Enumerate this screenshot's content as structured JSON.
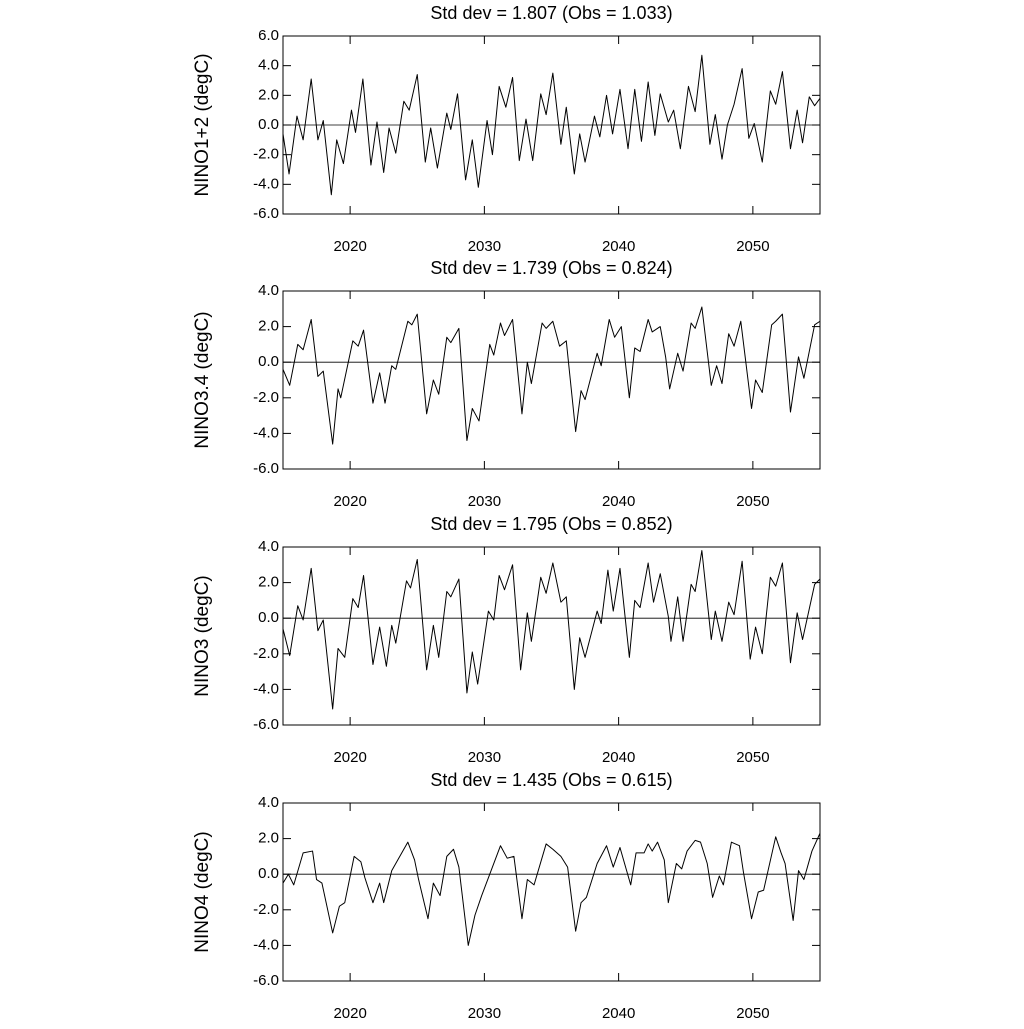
{
  "chart_data": [
    {
      "type": "line",
      "title": "Std dev = 1.807 (Obs = 1.033)",
      "ylabel": "NINO1+2 (degC)",
      "color": "#000000",
      "reference_line": 0,
      "xlim": [
        2015,
        2055
      ],
      "xticks": [
        2020,
        2030,
        2040,
        2050
      ],
      "ylim": [
        -6,
        6
      ],
      "yticks": [
        {
          "value": -6,
          "label": "-6.0"
        },
        {
          "value": -4,
          "label": "-4.0"
        },
        {
          "value": -2,
          "label": "-2.0"
        },
        {
          "value": 0,
          "label": "0.0"
        },
        {
          "value": 2,
          "label": "2.0"
        },
        {
          "value": 4,
          "label": "4.0"
        },
        {
          "value": 6,
          "label": "6.0"
        }
      ],
      "x": [
        2015.0,
        2015.45,
        2016.04,
        2016.5,
        2017.1,
        2017.6,
        2018.0,
        2018.6,
        2019.0,
        2019.5,
        2020.1,
        2020.4,
        2020.95,
        2021.55,
        2022.0,
        2022.5,
        2022.9,
        2023.4,
        2024.0,
        2024.4,
        2025.0,
        2025.6,
        2026.0,
        2026.5,
        2027.2,
        2027.5,
        2028.0,
        2028.6,
        2029.1,
        2029.55,
        2030.2,
        2030.6,
        2031.1,
        2031.6,
        2032.1,
        2032.6,
        2033.1,
        2033.6,
        2034.2,
        2034.6,
        2035.1,
        2035.7,
        2036.1,
        2036.7,
        2037.1,
        2037.5,
        2038.2,
        2038.6,
        2039.1,
        2039.55,
        2040.1,
        2040.7,
        2041.2,
        2041.7,
        2042.2,
        2042.7,
        2043.1,
        2043.7,
        2044.1,
        2044.6,
        2045.2,
        2045.7,
        2046.2,
        2046.8,
        2047.2,
        2047.7,
        2048.1,
        2048.6,
        2049.2,
        2049.7,
        2050.1,
        2050.7,
        2051.3,
        2051.7,
        2052.2,
        2052.8,
        2053.3,
        2053.7,
        2054.2,
        2054.6,
        2055.0
      ],
      "values": [
        -0.6,
        -3.3,
        0.6,
        -1.0,
        3.1,
        -1.0,
        0.3,
        -4.7,
        -1.0,
        -2.6,
        1.0,
        -0.5,
        3.1,
        -2.7,
        0.2,
        -3.2,
        -0.2,
        -1.9,
        1.6,
        1.0,
        3.4,
        -2.5,
        -0.2,
        -2.9,
        0.8,
        -0.3,
        2.1,
        -3.7,
        -1.0,
        -4.2,
        0.3,
        -2.0,
        2.6,
        1.2,
        3.2,
        -2.4,
        0.4,
        -2.4,
        2.1,
        0.7,
        3.5,
        -1.3,
        1.2,
        -3.3,
        -0.6,
        -2.5,
        0.6,
        -0.8,
        2.0,
        -0.6,
        2.4,
        -1.6,
        2.4,
        -1.1,
        2.9,
        -0.7,
        2.1,
        0.2,
        1.0,
        -1.6,
        2.6,
        0.9,
        4.7,
        -1.3,
        0.7,
        -2.3,
        0.0,
        1.4,
        3.8,
        -0.9,
        0.1,
        -2.5,
        2.3,
        1.4,
        3.6,
        -1.6,
        1.0,
        -1.2,
        1.9,
        1.3,
        1.8
      ]
    },
    {
      "type": "line",
      "title": "Std dev = 1.739 (Obs = 0.824)",
      "ylabel": "NINO3.4 (degC)",
      "color": "#000000",
      "reference_line": 0,
      "xlim": [
        2015,
        2055
      ],
      "xticks": [
        2020,
        2030,
        2040,
        2050
      ],
      "ylim": [
        -6,
        4
      ],
      "yticks": [
        {
          "value": -6,
          "label": "-6.0"
        },
        {
          "value": -4,
          "label": "-4.0"
        },
        {
          "value": -2,
          "label": "-2.0"
        },
        {
          "value": 0,
          "label": "0.0"
        },
        {
          "value": 2,
          "label": "2.0"
        },
        {
          "value": 4,
          "label": "4.0"
        }
      ],
      "x": [
        2015.0,
        2015.5,
        2016.1,
        2016.5,
        2017.1,
        2017.6,
        2018.0,
        2018.7,
        2019.1,
        2019.3,
        2020.2,
        2020.6,
        2021.0,
        2021.7,
        2022.2,
        2022.6,
        2023.1,
        2023.4,
        2024.3,
        2024.6,
        2025.0,
        2025.7,
        2026.2,
        2026.6,
        2027.2,
        2027.5,
        2028.1,
        2028.7,
        2029.1,
        2029.6,
        2030.4,
        2030.7,
        2031.2,
        2031.5,
        2032.1,
        2032.8,
        2033.2,
        2033.5,
        2034.3,
        2034.6,
        2035.1,
        2035.6,
        2036.1,
        2036.8,
        2037.2,
        2037.5,
        2038.4,
        2038.7,
        2039.3,
        2039.7,
        2040.2,
        2040.8,
        2041.2,
        2041.6,
        2042.2,
        2042.5,
        2043.1,
        2043.5,
        2043.8,
        2044.4,
        2044.8,
        2045.4,
        2045.7,
        2046.2,
        2046.9,
        2047.3,
        2047.7,
        2048.2,
        2048.6,
        2049.1,
        2049.9,
        2050.2,
        2050.7,
        2051.4,
        2051.7,
        2052.2,
        2052.8,
        2053.4,
        2053.8,
        2054.6,
        2055.0
      ],
      "values": [
        -0.4,
        -1.3,
        1.0,
        0.7,
        2.4,
        -0.8,
        -0.5,
        -4.6,
        -1.5,
        -2.0,
        1.2,
        0.9,
        1.8,
        -2.3,
        -0.6,
        -2.3,
        -0.2,
        -0.4,
        2.3,
        2.1,
        2.7,
        -2.9,
        -1.0,
        -1.8,
        1.4,
        1.1,
        1.9,
        -4.4,
        -2.6,
        -3.3,
        1.0,
        0.4,
        2.2,
        1.5,
        2.4,
        -2.9,
        0.0,
        -1.2,
        2.2,
        1.9,
        2.3,
        0.9,
        1.2,
        -3.9,
        -1.6,
        -2.1,
        0.5,
        -0.2,
        2.4,
        1.4,
        2.0,
        -2.0,
        0.8,
        0.6,
        2.4,
        1.7,
        2.0,
        0.3,
        -1.5,
        0.5,
        -0.5,
        2.2,
        1.9,
        3.1,
        -1.3,
        -0.2,
        -1.2,
        1.6,
        0.9,
        2.3,
        -2.6,
        -1.0,
        -1.7,
        2.1,
        2.3,
        2.7,
        -2.8,
        0.3,
        -0.9,
        2.1,
        2.3
      ]
    },
    {
      "type": "line",
      "title": "Std dev = 1.795 (Obs = 0.852)",
      "ylabel": "NINO3 (degC)",
      "color": "#000000",
      "reference_line": 0,
      "xlim": [
        2015,
        2055
      ],
      "xticks": [
        2020,
        2030,
        2040,
        2050
      ],
      "ylim": [
        -6,
        4
      ],
      "yticks": [
        {
          "value": -6,
          "label": "-6.0"
        },
        {
          "value": -4,
          "label": "-4.0"
        },
        {
          "value": -2,
          "label": "-2.0"
        },
        {
          "value": 0,
          "label": "0.0"
        },
        {
          "value": 2,
          "label": "2.0"
        },
        {
          "value": 4,
          "label": "4.0"
        }
      ],
      "x": [
        2015.0,
        2015.5,
        2016.1,
        2016.5,
        2017.1,
        2017.6,
        2018.0,
        2018.7,
        2019.1,
        2019.6,
        2020.2,
        2020.6,
        2021.0,
        2021.7,
        2022.2,
        2022.7,
        2023.1,
        2023.4,
        2024.2,
        2024.5,
        2025.0,
        2025.7,
        2026.2,
        2026.6,
        2027.2,
        2027.5,
        2028.1,
        2028.7,
        2029.1,
        2029.5,
        2030.3,
        2030.7,
        2031.1,
        2031.5,
        2032.1,
        2032.7,
        2033.2,
        2033.5,
        2034.2,
        2034.6,
        2035.1,
        2035.7,
        2036.1,
        2036.7,
        2037.1,
        2037.5,
        2038.4,
        2038.7,
        2039.2,
        2039.6,
        2040.1,
        2040.8,
        2041.2,
        2041.6,
        2042.2,
        2042.6,
        2043.1,
        2043.7,
        2043.9,
        2044.4,
        2044.8,
        2045.4,
        2045.7,
        2046.2,
        2046.9,
        2047.2,
        2047.7,
        2048.2,
        2048.6,
        2049.2,
        2049.8,
        2050.2,
        2050.7,
        2051.3,
        2051.7,
        2052.2,
        2052.8,
        2053.3,
        2053.7,
        2054.6,
        2055.0
      ],
      "values": [
        -0.6,
        -2.1,
        0.7,
        -0.1,
        2.8,
        -0.7,
        -0.1,
        -5.1,
        -1.7,
        -2.2,
        1.1,
        0.6,
        2.4,
        -2.6,
        -0.5,
        -2.7,
        -0.4,
        -1.4,
        2.1,
        1.7,
        3.3,
        -2.9,
        -0.4,
        -2.2,
        1.5,
        1.2,
        2.2,
        -4.2,
        -1.9,
        -3.7,
        0.4,
        -0.1,
        2.4,
        1.6,
        3.0,
        -2.9,
        0.3,
        -1.3,
        2.3,
        1.4,
        3.1,
        0.9,
        1.2,
        -4.0,
        -1.1,
        -2.2,
        0.4,
        -0.3,
        2.7,
        0.4,
        2.8,
        -2.2,
        1.0,
        0.6,
        3.1,
        0.9,
        2.5,
        0.1,
        -1.3,
        1.2,
        -1.3,
        1.9,
        1.5,
        3.8,
        -1.2,
        0.4,
        -1.3,
        0.9,
        0.2,
        3.2,
        -2.3,
        -0.5,
        -2.0,
        2.3,
        1.8,
        3.1,
        -2.5,
        0.3,
        -1.2,
        1.9,
        2.2
      ]
    },
    {
      "type": "line",
      "title": "Std dev = 1.435 (Obs = 0.615)",
      "ylabel": "NINO4 (degC)",
      "color": "#000000",
      "reference_line": 0,
      "xlim": [
        2015,
        2055
      ],
      "xticks": [
        2020,
        2030,
        2040,
        2050
      ],
      "ylim": [
        -6,
        4
      ],
      "yticks": [
        {
          "value": -6,
          "label": "-6.0"
        },
        {
          "value": -4,
          "label": "-4.0"
        },
        {
          "value": -2,
          "label": "-2.0"
        },
        {
          "value": 0,
          "label": "0.0"
        },
        {
          "value": 2,
          "label": "2.0"
        },
        {
          "value": 4,
          "label": "4.0"
        }
      ],
      "x": [
        2015.0,
        2015.4,
        2015.8,
        2016.5,
        2017.2,
        2017.5,
        2017.9,
        2018.7,
        2019.2,
        2019.6,
        2020.3,
        2020.8,
        2021.1,
        2021.7,
        2022.2,
        2022.5,
        2023.1,
        2023.4,
        2024.3,
        2024.8,
        2025.1,
        2025.8,
        2026.2,
        2026.7,
        2027.2,
        2027.7,
        2028.1,
        2028.8,
        2029.3,
        2029.8,
        2030.4,
        2031.2,
        2031.7,
        2032.2,
        2032.8,
        2033.2,
        2033.7,
        2034.6,
        2035.1,
        2035.7,
        2036.2,
        2036.8,
        2037.2,
        2037.6,
        2038.4,
        2039.1,
        2039.6,
        2040.1,
        2040.9,
        2041.3,
        2041.9,
        2042.2,
        2042.5,
        2042.9,
        2043.4,
        2043.7,
        2044.3,
        2044.7,
        2045.1,
        2045.7,
        2046.1,
        2046.6,
        2047.0,
        2047.5,
        2047.8,
        2048.4,
        2049.0,
        2049.3,
        2049.9,
        2050.4,
        2050.8,
        2051.7,
        2052.1,
        2052.4,
        2053.0,
        2053.4,
        2053.8,
        2054.4,
        2055.0
      ],
      "values": [
        -0.5,
        0.0,
        -0.6,
        1.2,
        1.3,
        -0.3,
        -0.5,
        -3.3,
        -1.8,
        -1.6,
        1.0,
        0.7,
        -0.2,
        -1.6,
        -0.5,
        -1.6,
        0.2,
        0.6,
        1.8,
        0.8,
        -0.3,
        -2.5,
        -0.5,
        -1.2,
        1.0,
        1.4,
        0.4,
        -4.0,
        -2.3,
        -1.2,
        0.0,
        1.6,
        0.9,
        1.0,
        -2.5,
        -0.3,
        -0.6,
        1.7,
        1.4,
        1.0,
        0.4,
        -3.2,
        -1.6,
        -1.3,
        0.6,
        1.6,
        0.4,
        1.5,
        -0.6,
        1.2,
        1.2,
        1.7,
        1.3,
        1.8,
        0.8,
        -1.6,
        0.6,
        0.3,
        1.3,
        1.9,
        1.8,
        0.6,
        -1.3,
        -0.1,
        -0.6,
        1.8,
        1.6,
        0.1,
        -2.5,
        -1.0,
        -0.9,
        2.1,
        1.2,
        0.6,
        -2.6,
        0.2,
        -0.3,
        1.3,
        2.3
      ]
    }
  ]
}
